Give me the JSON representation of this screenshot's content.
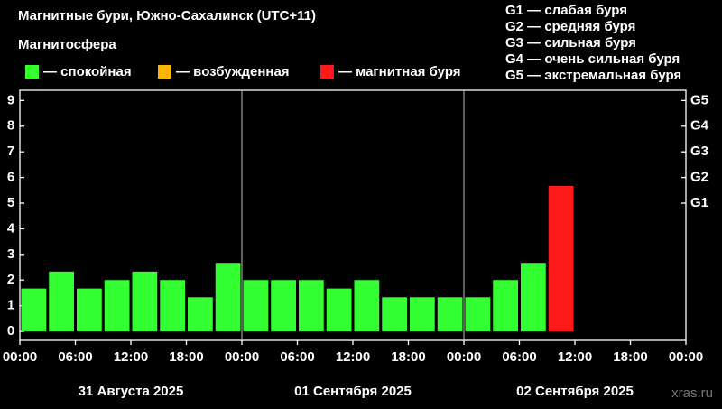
{
  "chart_data": {
    "type": "bar",
    "title": "Магнитные бури, Южно-Сахалинск (UTC+11)",
    "legend_title": "Магнитосфера",
    "legend": [
      {
        "name": "— спокойная",
        "color": "#33ff33"
      },
      {
        "name": "— возбужденная",
        "color": "#ffb400"
      },
      {
        "name": "— магнитная буря",
        "color": "#ff1a1a"
      }
    ],
    "g_legend": [
      "G1 — слабая буря",
      "G2 — средняя буря",
      "G3 — сильная буря",
      "G4 — очень сильная буря",
      "G5 — экстремальная буря"
    ],
    "x": [
      0,
      3,
      6,
      9,
      12,
      15,
      18,
      21,
      24,
      27,
      30,
      33,
      36,
      39,
      42,
      45,
      48,
      51,
      54,
      57
    ],
    "bar_width": 3,
    "values": [
      1.67,
      2.33,
      1.67,
      2.0,
      2.33,
      2.0,
      1.33,
      2.67,
      2.0,
      2.0,
      2.0,
      1.67,
      2.0,
      1.33,
      1.33,
      1.33,
      1.33,
      2.0,
      2.67,
      5.67
    ],
    "bar_colors": [
      "#33ff33",
      "#33ff33",
      "#33ff33",
      "#33ff33",
      "#33ff33",
      "#33ff33",
      "#33ff33",
      "#33ff33",
      "#33ff33",
      "#33ff33",
      "#33ff33",
      "#33ff33",
      "#33ff33",
      "#33ff33",
      "#33ff33",
      "#33ff33",
      "#33ff33",
      "#33ff33",
      "#33ff33",
      "#ff1a1a"
    ],
    "xlim": [
      0,
      72
    ],
    "xticks": [
      {
        "value": 0,
        "label": "00:00"
      },
      {
        "value": 6,
        "label": "06:00"
      },
      {
        "value": 12,
        "label": "12:00"
      },
      {
        "value": 18,
        "label": "18:00"
      },
      {
        "value": 24,
        "label": "00:00"
      },
      {
        "value": 30,
        "label": "06:00"
      },
      {
        "value": 36,
        "label": "12:00"
      },
      {
        "value": 42,
        "label": "18:00"
      },
      {
        "value": 48,
        "label": "00:00"
      },
      {
        "value": 54,
        "label": "06:00"
      },
      {
        "value": 60,
        "label": "12:00"
      },
      {
        "value": 66,
        "label": "18:00"
      },
      {
        "value": 72,
        "label": "00:00"
      }
    ],
    "day_labels": [
      "31 Августа 2025",
      "01 Сентября 2025",
      "02 Сентября 2025"
    ],
    "ylim": [
      -0.35,
      9.4
    ],
    "yticks": [
      0,
      1,
      2,
      3,
      4,
      5,
      6,
      7,
      8,
      9
    ],
    "y2ticks": [
      {
        "value": 5,
        "label": "G1"
      },
      {
        "value": 6,
        "label": "G2"
      },
      {
        "value": 7,
        "label": "G3"
      },
      {
        "value": 8,
        "label": "G4"
      },
      {
        "value": 9,
        "label": "G5"
      }
    ],
    "source": "xras.ru"
  }
}
